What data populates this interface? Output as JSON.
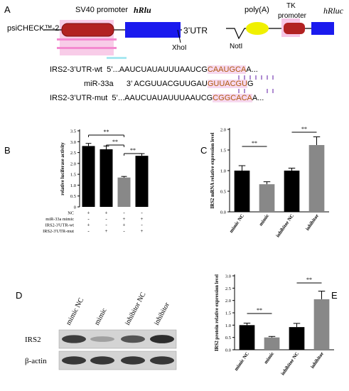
{
  "panelA": {
    "label": "A",
    "plasmid": "psiCHECK™-2",
    "sv40": "SV40 promoter",
    "hrlu": "hRlu",
    "utr": "3’UTR",
    "xhoi": "XhoI",
    "polya": "poly(A)",
    "tk": "TK",
    "tk_promoter": "promoter",
    "noti": "NotI",
    "hrluc": "hRluc",
    "colors": {
      "promoter": "#b22222",
      "gene": "#1a1aee",
      "polya": "#f0f000",
      "highlight": "#f4a6d7",
      "mut": "#b05a10",
      "pair": "#7a3fb5"
    },
    "sequences": [
      {
        "name": "IRS2-3’UTR-wt",
        "prefix": "5’...AAUCUAUAUUUAAUCG",
        "seed": "CAAUGCA",
        "suffix": "A..."
      },
      {
        "name": "miR-33a",
        "prefix": "3’   ACGUUACGUUGAU",
        "seed": "GUUACGU",
        "suffix": "G"
      },
      {
        "name": "IRS2-3’UTR-mut",
        "prefix": "5’...AAUCUAUAUUUAAUCG",
        "seed": "CGGCACA",
        "suffix": "A..."
      }
    ]
  },
  "panelB": {
    "label": "B",
    "sig": "**"
  },
  "panelC": {
    "label": "C",
    "sig": "**"
  },
  "panelD": {
    "label": "D",
    "lanes": [
      "mimic NC",
      "mimic",
      "inhibitor NC",
      "inhibitor"
    ],
    "rows": [
      {
        "name": "IRS2",
        "intensities": [
          0.78,
          0.35,
          0.68,
          0.85
        ]
      },
      {
        "name": "β-actin",
        "intensities": [
          0.8,
          0.8,
          0.8,
          0.8
        ]
      }
    ]
  },
  "panelE": {
    "label": "E",
    "sig": "**"
  },
  "chart_data": [
    {
      "type": "bar",
      "ylabel": "relative luciferase activity",
      "values": [
        2.8,
        2.65,
        1.35,
        2.35
      ],
      "errors": [
        0.12,
        0.15,
        0.05,
        0.1
      ],
      "colors": [
        "#000000",
        "#000000",
        "#888888",
        "#000000"
      ],
      "ylim": [
        0,
        3.5
      ],
      "yticks": [
        0,
        0.5,
        1.0,
        1.5,
        2.0,
        2.5,
        3.0,
        3.5
      ],
      "ytick_labels": [
        "0",
        "0.5",
        "1.0",
        "1.5",
        "2.0",
        "2.5",
        "3.0",
        "3.5"
      ],
      "condition_rows": [
        {
          "name": "NC",
          "signs": [
            "+",
            "+",
            "-",
            "-"
          ]
        },
        {
          "name": "miR-33a mimic",
          "signs": [
            "-",
            "-",
            "+",
            "+"
          ]
        },
        {
          "name": "IRS2-3'UTR-wt",
          "signs": [
            "+",
            "-",
            "+",
            "-"
          ]
        },
        {
          "name": "IRS2-3'UTR-mut",
          "signs": [
            "-",
            "+",
            "-",
            "+"
          ]
        }
      ],
      "significance": [
        {
          "from": 0,
          "to": 2,
          "label": "**"
        },
        {
          "from": 1,
          "to": 2,
          "label": "**"
        },
        {
          "from": 2,
          "to": 3,
          "label": "**"
        }
      ]
    },
    {
      "type": "bar",
      "categories": [
        "mimic NC",
        "mimic",
        "inhibitor NC",
        "inhibitor"
      ],
      "values": [
        1.0,
        0.67,
        1.0,
        1.62
      ],
      "errors": [
        0.12,
        0.06,
        0.06,
        0.2
      ],
      "colors": [
        "#000000",
        "#888888",
        "#000000",
        "#888888"
      ],
      "ylabel": "IRS2 mRNA relative expression level",
      "ylim": [
        0,
        2.0
      ],
      "yticks": [
        0,
        0.5,
        1.0,
        1.5,
        2.0
      ],
      "ytick_labels": [
        "0.0",
        "0.5",
        "1.0",
        "1.5",
        "2.0"
      ],
      "significance": [
        {
          "from": 0,
          "to": 1,
          "label": "**"
        },
        {
          "from": 2,
          "to": 3,
          "label": "**"
        }
      ]
    },
    {
      "type": "bar",
      "categories": [
        "mimic NC",
        "mimic",
        "inhibitor NC",
        "inhibitor"
      ],
      "values": [
        1.0,
        0.5,
        0.92,
        2.05
      ],
      "errors": [
        0.08,
        0.04,
        0.15,
        0.33
      ],
      "colors": [
        "#000000",
        "#888888",
        "#000000",
        "#888888"
      ],
      "ylabel": "IRS2 protein relative expression level",
      "ylim": [
        0,
        3.0
      ],
      "yticks": [
        0,
        0.5,
        1.0,
        1.5,
        2.0,
        2.5,
        3.0
      ],
      "ytick_labels": [
        "0.0",
        "0.5",
        "1.0",
        "1.5",
        "2.0",
        "2.5",
        "3.0"
      ],
      "significance": [
        {
          "from": 0,
          "to": 1,
          "label": "**"
        },
        {
          "from": 2,
          "to": 3,
          "label": "**"
        }
      ]
    }
  ]
}
